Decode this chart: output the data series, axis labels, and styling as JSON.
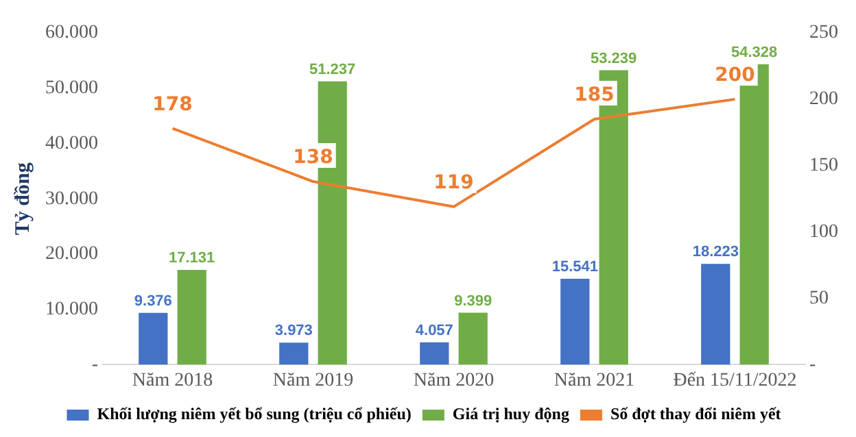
{
  "chart_data": {
    "type": "bar",
    "ylabel": "Tỷ đồng",
    "categories": [
      "Năm 2018",
      "Năm 2019",
      "Năm 2020",
      "Năm 2021",
      "Đến 15/11/2022"
    ],
    "series": [
      {
        "name": "Khối lượng niêm yết bổ sung (triệu cổ phiếu)",
        "color": "#4472c4",
        "values": [
          9376,
          3973,
          4057,
          15541,
          18223
        ],
        "value_labels": [
          "9.376",
          "3.973",
          "4.057",
          "15.541",
          "18.223"
        ]
      },
      {
        "name": "Giá trị huy động",
        "color": "#70ad47",
        "values": [
          17131,
          51237,
          9399,
          53239,
          54328
        ],
        "value_labels": [
          "17.131",
          "51.237",
          "9.399",
          "53.239",
          "54.328"
        ]
      },
      {
        "name": "Số đợt thay đổi niêm yết",
        "type": "line",
        "axis": "y2",
        "color": "#ed7d31",
        "values": [
          178,
          138,
          119,
          185,
          200
        ],
        "value_labels": [
          "178",
          "138",
          "119",
          "185",
          "200"
        ]
      }
    ],
    "ylim": [
      0,
      60000
    ],
    "yticks": [
      {
        "value": 0,
        "label": "-"
      },
      {
        "value": 10000,
        "label": "10.000"
      },
      {
        "value": 20000,
        "label": "20.000"
      },
      {
        "value": 30000,
        "label": "30.000"
      },
      {
        "value": 40000,
        "label": "40.000"
      },
      {
        "value": 50000,
        "label": "50.000"
      },
      {
        "value": 60000,
        "label": "60.000"
      }
    ],
    "y2lim": [
      0,
      250
    ],
    "y2ticks": [
      {
        "value": 0,
        "label": "-"
      },
      50,
      100,
      150,
      200,
      250
    ],
    "grid": false,
    "legend": "bottom",
    "marker": "none",
    "line_style": "solid"
  }
}
